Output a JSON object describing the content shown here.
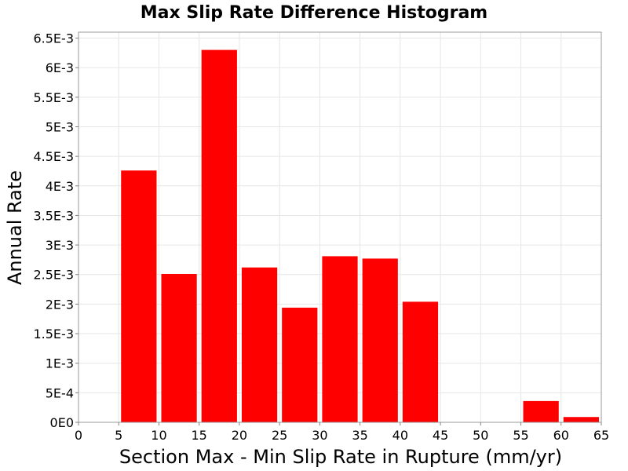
{
  "chart_data": {
    "type": "bar",
    "title": "Max Slip Rate Difference Histogram",
    "xlabel": "Section Max - Min Slip Rate in Rupture (mm/yr)",
    "ylabel": "Annual Rate",
    "xlim": [
      0,
      65
    ],
    "ylim": [
      0,
      0.0066
    ],
    "grid": true,
    "bar_color": "#ff0000",
    "x_ticks": [
      0,
      5,
      10,
      15,
      20,
      25,
      30,
      35,
      40,
      45,
      50,
      55,
      60,
      65
    ],
    "x_tick_labels": [
      "0",
      "5",
      "10",
      "15",
      "20",
      "25",
      "30",
      "35",
      "40",
      "45",
      "50",
      "55",
      "60",
      "65"
    ],
    "y_ticks": [
      0,
      0.0005,
      0.001,
      0.0015,
      0.002,
      0.0025,
      0.003,
      0.0035,
      0.004,
      0.0045,
      0.005,
      0.0055,
      0.006,
      0.0065
    ],
    "y_tick_labels": [
      "0E0",
      "5E-4",
      "1E-3",
      "1.5E-3",
      "2E-3",
      "2.5E-3",
      "3E-3",
      "3.5E-3",
      "4E-3",
      "4.5E-3",
      "5E-3",
      "5.5E-3",
      "6E-3",
      "6.5E-3"
    ],
    "bin_width": 5,
    "bin_centers": [
      7.5,
      12.5,
      17.5,
      22.5,
      27.5,
      32.5,
      37.5,
      42.5,
      47.5,
      52.5,
      57.5,
      62.5
    ],
    "values": [
      0.00426,
      0.00251,
      0.0063,
      0.00262,
      0.00194,
      0.00281,
      0.00277,
      0.00204,
      0.0,
      0.0,
      0.00036,
      9e-05
    ]
  }
}
